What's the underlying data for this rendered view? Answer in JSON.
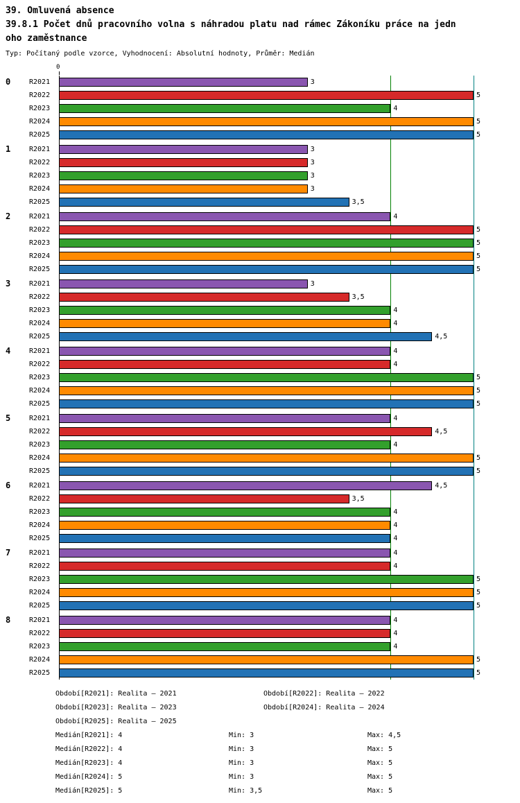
{
  "header": {
    "title_line1": "39. Omluvená absence",
    "title_line2": "39.8.1 Počet dnů pracovního volna s náhradou platu nad rámec Zákoníku práce na jednoho zaměstnance",
    "subtitle": "Typ: Počítaný podle vzorce, Vyhodnocení: Absolutní hodnoty, Průměr: Medián"
  },
  "chart_data": {
    "type": "bar",
    "orientation": "horizontal",
    "title": "39.8.1 Počet dnů pracovního volna s náhradou platu nad rámec Zákoníku práce na jednoho zaměstnance",
    "xlim": [
      0,
      5
    ],
    "origin_tick_label": "0",
    "grid": "vertical-lines-at-4-and-5",
    "decimal_separator": ",",
    "bar_series": [
      {
        "label": "R2021",
        "color": "#8a56b0"
      },
      {
        "label": "R2022",
        "color": "#d62a2a"
      },
      {
        "label": "R2023",
        "color": "#33a02c"
      },
      {
        "label": "R2024",
        "color": "#ff8a00"
      },
      {
        "label": "R2025",
        "color": "#2272b5"
      }
    ],
    "groups": [
      {
        "label": "0",
        "values": [
          3,
          5,
          4,
          5,
          5
        ]
      },
      {
        "label": "1",
        "values": [
          3,
          3,
          3,
          3,
          3.5
        ]
      },
      {
        "label": "2",
        "values": [
          4,
          5,
          5,
          5,
          5
        ]
      },
      {
        "label": "3",
        "values": [
          3,
          3.5,
          4,
          4,
          4.5
        ]
      },
      {
        "label": "4",
        "values": [
          4,
          4,
          5,
          5,
          5
        ]
      },
      {
        "label": "5",
        "values": [
          4,
          4.5,
          4,
          5,
          5
        ]
      },
      {
        "label": "6",
        "values": [
          4.5,
          3.5,
          4,
          4,
          4
        ]
      },
      {
        "label": "7",
        "values": [
          4,
          4,
          5,
          5,
          5
        ]
      },
      {
        "label": "8",
        "values": [
          4,
          4,
          4,
          5,
          5
        ]
      }
    ],
    "gridlines": [
      {
        "value": 4,
        "color": "#008000"
      },
      {
        "value": 5,
        "color": "#008080"
      }
    ],
    "legend_rows": [
      [
        "Období[R2021]: Realita – 2021",
        "Období[R2022]: Realita – 2022"
      ],
      [
        "Období[R2023]: Realita – 2023",
        "Období[R2024]: Realita – 2024"
      ],
      [
        "Období[R2025]: Realita – 2025"
      ]
    ],
    "stats_rows": [
      [
        "Medián[R2021]: 4",
        "Min: 3",
        "Max: 4,5"
      ],
      [
        "Medián[R2022]: 4",
        "Min: 3",
        "Max: 5"
      ],
      [
        "Medián[R2023]: 4",
        "Min: 3",
        "Max: 5"
      ],
      [
        "Medián[R2024]: 5",
        "Min: 3",
        "Max: 5"
      ],
      [
        "Medián[R2025]: 5",
        "Min: 3,5",
        "Max: 5"
      ]
    ]
  }
}
